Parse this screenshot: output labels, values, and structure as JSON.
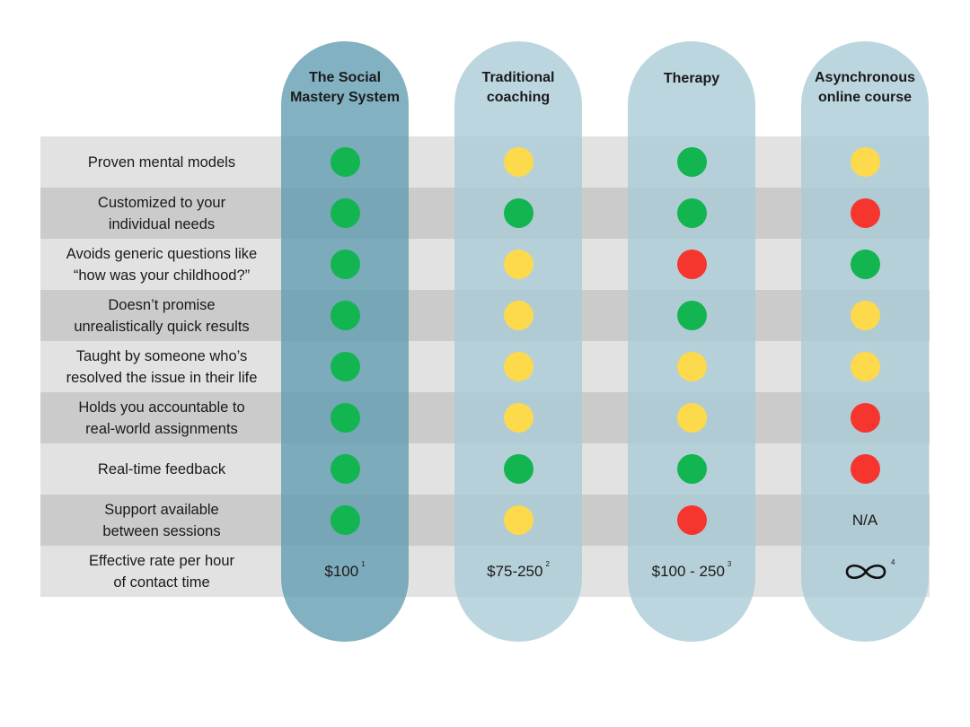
{
  "columns": [
    {
      "name": "The Social\nMastery System",
      "highlight": true
    },
    {
      "name": "Traditional\ncoaching",
      "highlight": false
    },
    {
      "name": "Therapy",
      "highlight": false
    },
    {
      "name": "Asynchronous\nonline course",
      "highlight": false
    }
  ],
  "rows": [
    {
      "label": "Proven mental models",
      "cells": [
        "green",
        "yellow",
        "green",
        "yellow"
      ]
    },
    {
      "label": "Customized to your\nindividual needs",
      "cells": [
        "green",
        "green",
        "green",
        "red"
      ]
    },
    {
      "label": "Avoids generic questions like\n“how was your childhood?”",
      "cells": [
        "green",
        "yellow",
        "red",
        "green"
      ]
    },
    {
      "label": "Doesn’t promise\nunrealistically quick results",
      "cells": [
        "green",
        "yellow",
        "green",
        "yellow"
      ]
    },
    {
      "label": "Taught by someone who’s\nresolved the issue in their life",
      "cells": [
        "green",
        "yellow",
        "yellow",
        "yellow"
      ]
    },
    {
      "label": "Holds you accountable to\nreal-world assignments",
      "cells": [
        "green",
        "yellow",
        "yellow",
        "red"
      ]
    },
    {
      "label": "Real-time feedback",
      "cells": [
        "green",
        "green",
        "green",
        "red"
      ]
    },
    {
      "label": "Support available\nbetween sessions",
      "cells": [
        "green",
        "yellow",
        "red",
        "N/A"
      ]
    }
  ],
  "rate_row": {
    "label": "Effective rate per hour\nof contact time",
    "cells": [
      {
        "text": "$100",
        "note": "1"
      },
      {
        "text": "$75-250",
        "note": "2"
      },
      {
        "text": "$100 - 250",
        "note": "3"
      },
      {
        "text": "",
        "icon": "infinity-icon",
        "note": "4"
      }
    ]
  },
  "colors": {
    "green": "#12b54f",
    "yellow": "#fdd94c",
    "red": "#f7352f"
  }
}
